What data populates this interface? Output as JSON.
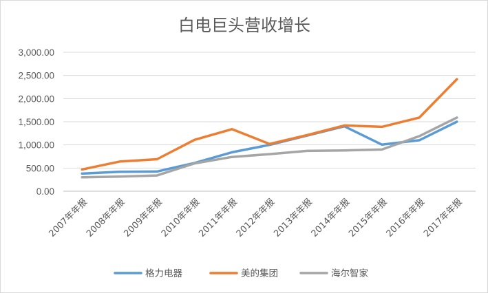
{
  "chart_data": {
    "type": "line",
    "title": "白电巨头营收增长",
    "categories": [
      "2007年年报",
      "2008年年报",
      "2009年年报",
      "2010年年报",
      "2011年年报",
      "2012年年报",
      "2013年年报",
      "2014年年报",
      "2015年年报",
      "2016年年报",
      "2017年年报"
    ],
    "ylim": [
      0,
      3000
    ],
    "yticks": [
      "0.00",
      "500.00",
      "1,000.00",
      "1,500.00",
      "2,000.00",
      "2,500.00",
      "3,000.00"
    ],
    "ytick_values": [
      0,
      500,
      1000,
      1500,
      2000,
      2500,
      3000
    ],
    "grid": true,
    "legend_position": "bottom",
    "series": [
      {
        "name": "格力电器",
        "color": "#5b9bd5",
        "values": [
          380,
          420,
          425,
          610,
          840,
          1000,
          1200,
          1400,
          1006,
          1100,
          1500
        ]
      },
      {
        "name": "美的集团",
        "color": "#ed7d31",
        "values": [
          470,
          640,
          690,
          1110,
          1340,
          1020,
          1210,
          1420,
          1390,
          1590,
          2420
        ]
      },
      {
        "name": "海尔智家",
        "color": "#a5a5a5",
        "values": [
          300,
          315,
          340,
          600,
          740,
          800,
          870,
          880,
          900,
          1190,
          1590
        ]
      }
    ]
  }
}
